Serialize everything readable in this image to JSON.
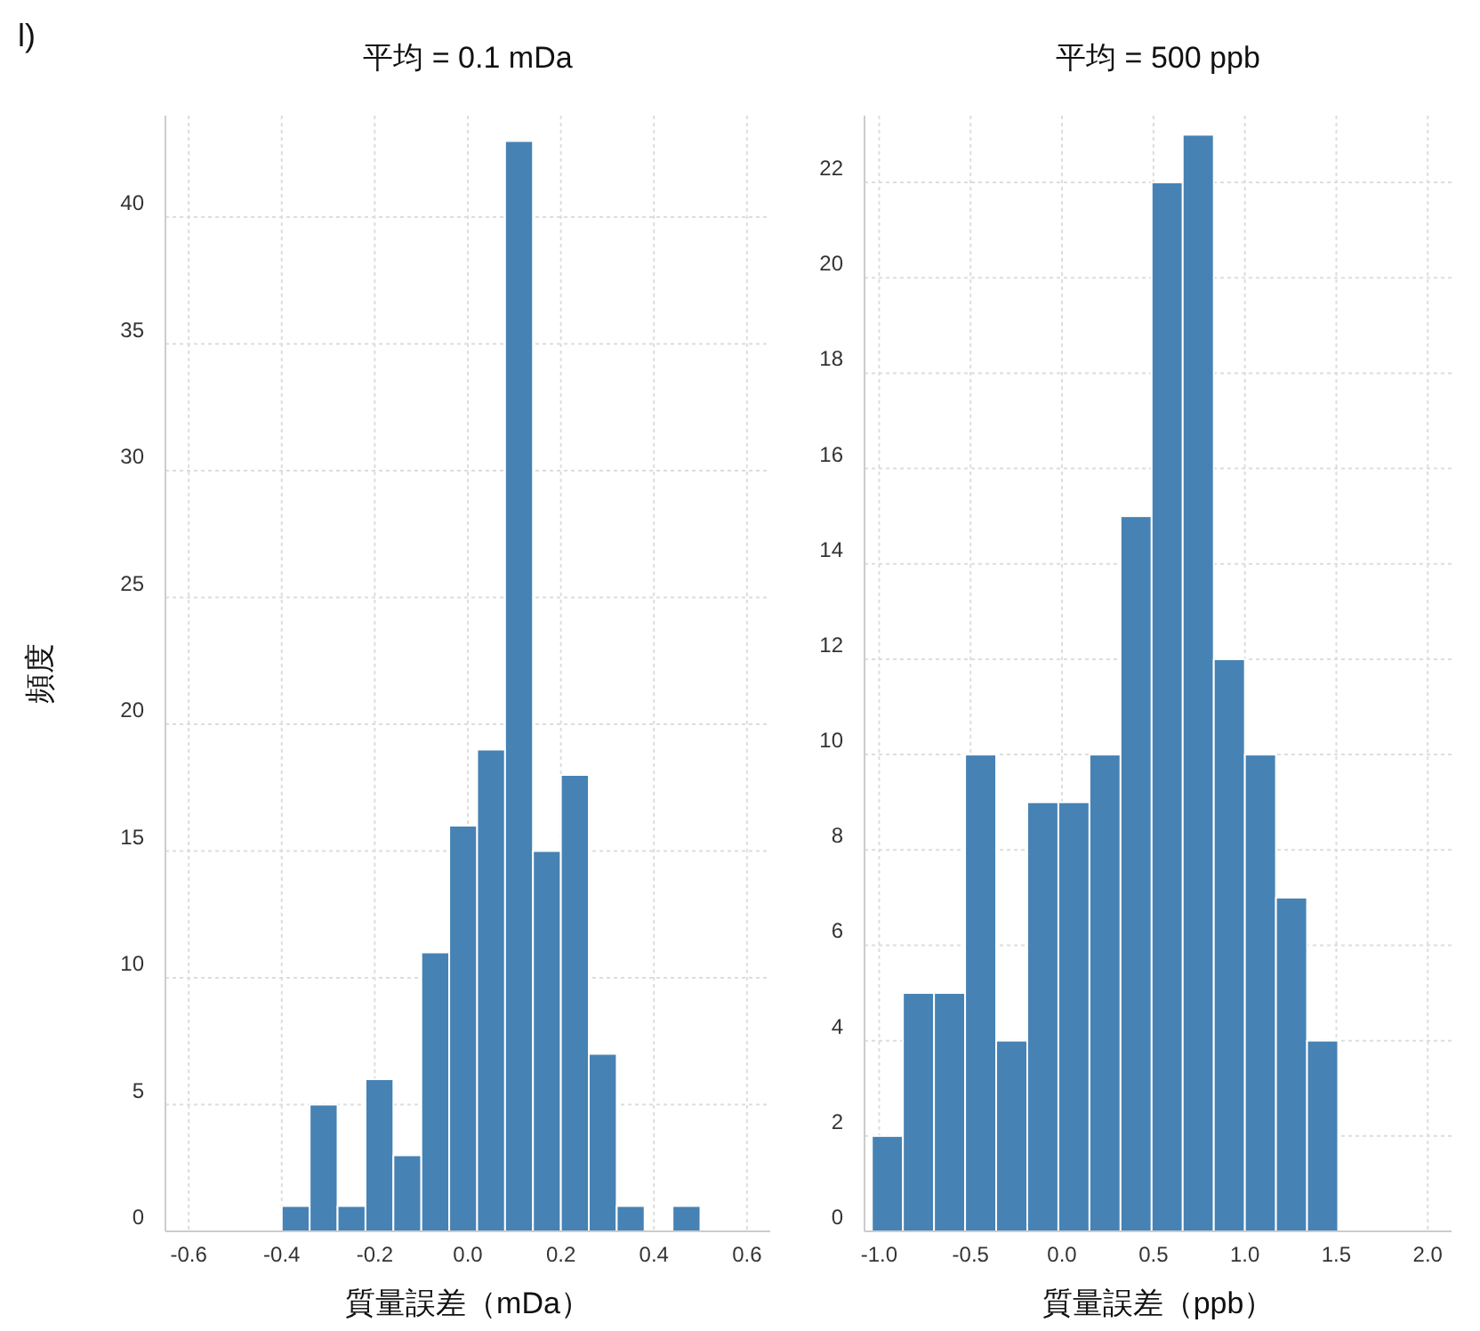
{
  "chart_data": [
    {
      "type": "histogram",
      "title": "平均 = 0.1 mDa",
      "xlabel": "質量誤差（mDa）",
      "ylabel": "頻度",
      "annotations": [
        "l)"
      ],
      "bins": [
        -0.4,
        -0.34,
        -0.28,
        -0.22,
        -0.16,
        -0.1,
        -0.04,
        0.02,
        0.08,
        0.14,
        0.2,
        0.26,
        0.32,
        0.38,
        0.44,
        0.5
      ],
      "values": [
        1,
        5,
        1,
        6,
        3,
        11,
        16,
        19,
        43,
        15,
        18,
        7,
        1,
        0,
        1
      ],
      "color": "#4682b4",
      "xlim": [
        -0.65,
        0.65
      ],
      "xticks": [
        -0.6,
        -0.4,
        -0.2,
        {
          "value": 0,
          "label": "0.0"
        },
        0.2,
        0.4,
        0.6
      ],
      "ylim": [
        0,
        44
      ],
      "yticks": [
        0,
        5,
        10,
        15,
        20,
        25,
        30,
        35,
        40
      ],
      "grid": true
    },
    {
      "type": "histogram",
      "title": "平均 = 500 ppb",
      "xlabel": "質量誤差（ppb）",
      "bins": [
        -1.04,
        -0.87,
        -0.7,
        -0.53,
        -0.36,
        -0.19,
        -0.02,
        0.15,
        0.32,
        0.49,
        0.66,
        0.83,
        1.0,
        1.17,
        1.34,
        1.51
      ],
      "values": [
        2,
        5,
        5,
        10,
        4,
        9,
        9,
        10,
        15,
        22,
        23,
        12,
        10,
        7,
        4
      ],
      "color": "#4682b4",
      "xlim": [
        -1.08,
        2.13
      ],
      "xticks": [
        {
          "value": -1,
          "label": "-1.0"
        },
        -0.5,
        {
          "value": 0,
          "label": "0.0"
        },
        0.5,
        {
          "value": 1,
          "label": "1.0"
        },
        1.5,
        {
          "value": 2,
          "label": "2.0"
        }
      ],
      "ylim": [
        0,
        23.4
      ],
      "yticks": [
        0,
        2,
        4,
        6,
        8,
        10,
        12,
        14,
        16,
        18,
        20,
        22
      ],
      "grid": true
    }
  ]
}
